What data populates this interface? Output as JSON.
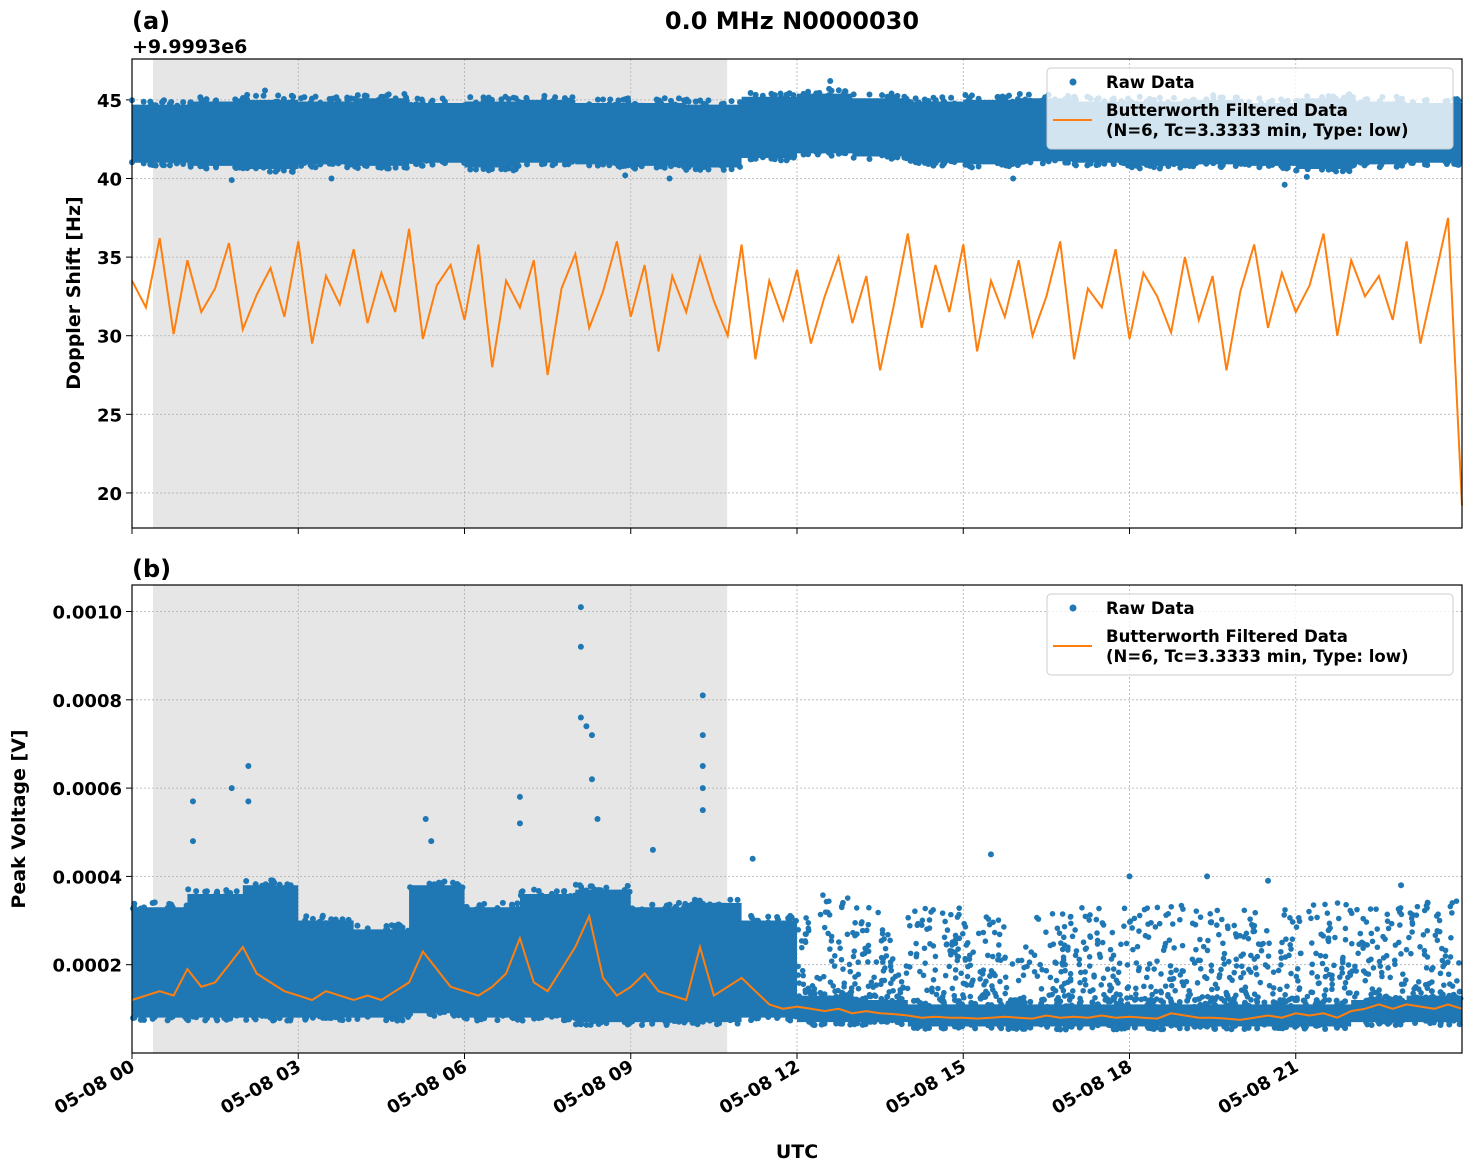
{
  "title": "0.0 MHz N0000030",
  "colors": {
    "raw": "#1f77b4",
    "filtered": "#ff7f0e",
    "shade": "#e6e6e6"
  },
  "x_tick_labels": [
    "05-08 00",
    "05-08 03",
    "05-08 06",
    "05-08 09",
    "05-08 12",
    "05-08 15",
    "05-08 18",
    "05-08 21"
  ],
  "xlabel": "UTC",
  "chart_data": [
    {
      "type": "scatter+line",
      "panel_label": "(a)",
      "ylabel": "Doppler Shift [Hz]",
      "offset_text": "+9.9993e6",
      "xlim_hours": [
        0,
        24
      ],
      "ylim": [
        17.77,
        47.6
      ],
      "y_ticks": [
        20,
        25,
        30,
        35,
        40,
        45
      ],
      "y_tick_labels": [
        "20",
        "25",
        "30",
        "35",
        "40",
        "45"
      ],
      "grid": true,
      "legend_position": "top-right",
      "legend": [
        "Raw Data",
        "Butterworth Filtered Data",
        "(N=6, Tc=3.3333 min, Type: low)"
      ],
      "shaded_region_hours": [
        0.38,
        10.74
      ],
      "raw_band_hourly": [
        [
          41.0,
          44.7
        ],
        [
          40.8,
          44.9
        ],
        [
          40.6,
          45.0
        ],
        [
          40.9,
          44.9
        ],
        [
          40.8,
          45.1
        ],
        [
          41.0,
          44.8
        ],
        [
          40.7,
          44.9
        ],
        [
          41.0,
          45.0
        ],
        [
          40.9,
          44.8
        ],
        [
          40.8,
          44.8
        ],
        [
          40.7,
          44.7
        ],
        [
          41.3,
          45.2
        ],
        [
          41.6,
          45.4
        ],
        [
          41.4,
          45.1
        ],
        [
          41.0,
          44.9
        ],
        [
          40.9,
          45.0
        ],
        [
          41.1,
          45.1
        ],
        [
          41.0,
          44.9
        ],
        [
          40.8,
          44.9
        ],
        [
          40.9,
          45.0
        ],
        [
          40.8,
          44.8
        ],
        [
          40.6,
          45.1
        ],
        [
          40.9,
          44.9
        ],
        [
          41.0,
          44.8
        ]
      ],
      "raw_outliers": [
        [
          1.8,
          39.9
        ],
        [
          3.6,
          40.0
        ],
        [
          8.9,
          40.2
        ],
        [
          12.6,
          46.2
        ],
        [
          15.9,
          40.0
        ],
        [
          20.8,
          39.6
        ],
        [
          21.2,
          40.1
        ],
        [
          9.7,
          40.0
        ],
        [
          2.4,
          45.6
        ]
      ],
      "filtered_start": "05-08 00:00",
      "filtered_step_minutes": 15,
      "filtered": [
        33.5,
        31.8,
        36.2,
        30.1,
        34.8,
        31.5,
        33.0,
        35.9,
        30.4,
        32.6,
        34.3,
        31.2,
        36.0,
        29.5,
        33.8,
        32.0,
        35.5,
        30.8,
        34.0,
        31.5,
        36.8,
        29.8,
        33.2,
        34.5,
        31.0,
        35.8,
        28.0,
        33.5,
        31.8,
        34.8,
        27.5,
        33.0,
        35.2,
        30.5,
        32.8,
        36.0,
        31.2,
        34.5,
        29.0,
        33.8,
        31.5,
        35.0,
        32.2,
        30.0,
        35.8,
        28.5,
        33.5,
        31.0,
        34.2,
        29.5,
        32.5,
        35.0,
        30.8,
        33.8,
        27.8,
        32.0,
        36.5,
        30.5,
        34.5,
        31.5,
        35.8,
        29.0,
        33.5,
        31.2,
        34.8,
        30.0,
        32.5,
        36.0,
        28.5,
        33.0,
        31.8,
        35.5,
        29.8,
        34.0,
        32.5,
        30.2,
        35.0,
        31.0,
        33.8,
        27.8,
        32.8,
        35.8,
        30.5,
        34.0,
        31.5,
        33.2,
        36.5,
        30.0,
        34.8,
        32.5,
        33.8,
        31.0,
        36.0,
        29.5,
        33.5,
        37.5,
        19.2
      ]
    },
    {
      "type": "scatter+line",
      "panel_label": "(b)",
      "ylabel": "Peak Voltage [V]",
      "xlim_hours": [
        0,
        24
      ],
      "ylim": [
        0,
        0.00106
      ],
      "y_ticks": [
        0.0002,
        0.0004,
        0.0006,
        0.0008,
        0.001
      ],
      "y_tick_labels": [
        "0.0002",
        "0.0004",
        "0.0006",
        "0.0008",
        "0.0010"
      ],
      "grid": true,
      "legend_position": "top-right",
      "legend": [
        "Raw Data",
        "Butterworth Filtered Data",
        "(N=6, Tc=3.3333 min, Type: low)"
      ],
      "shaded_region_hours": [
        0.38,
        10.74
      ],
      "raw_dense_band_hourly": [
        [
          8e-05,
          0.00033
        ],
        [
          8e-05,
          0.00036
        ],
        [
          8e-05,
          0.00038
        ],
        [
          8e-05,
          0.0003
        ],
        [
          8e-05,
          0.00028
        ],
        [
          9e-05,
          0.00038
        ],
        [
          8e-05,
          0.00033
        ],
        [
          8e-05,
          0.00036
        ],
        [
          7e-05,
          0.00037
        ],
        [
          7e-05,
          0.00033
        ],
        [
          7e-05,
          0.00034
        ],
        [
          8e-05,
          0.0003
        ],
        [
          7e-05,
          0.00013
        ],
        [
          7e-05,
          0.00012
        ],
        [
          6e-05,
          0.00011
        ],
        [
          6e-05,
          0.00011
        ],
        [
          6e-05,
          0.00011
        ],
        [
          6e-05,
          0.00011
        ],
        [
          6e-05,
          0.00011
        ],
        [
          6e-05,
          0.00011
        ],
        [
          6e-05,
          0.00011
        ],
        [
          6e-05,
          0.00011
        ],
        [
          7e-05,
          0.00012
        ],
        [
          7e-05,
          0.00013
        ]
      ],
      "raw_sparse_band_hourly": [
        [
          0.00012,
          0.00036
        ],
        [
          0.00012,
          0.00033
        ],
        [
          0.00012,
          0.00033
        ],
        [
          0.00012,
          0.00031
        ],
        [
          0.00012,
          0.00032
        ],
        [
          0.00012,
          0.00033
        ],
        [
          0.00012,
          0.00034
        ],
        [
          0.00012,
          0.00033
        ],
        [
          0.00012,
          0.00033
        ],
        [
          0.00012,
          0.00034
        ],
        [
          0.00012,
          0.00033
        ],
        [
          0.00012,
          0.00035
        ]
      ],
      "raw_outliers": [
        [
          1.1,
          0.00057
        ],
        [
          1.1,
          0.00048
        ],
        [
          1.8,
          0.0006
        ],
        [
          2.1,
          0.00065
        ],
        [
          2.1,
          0.00057
        ],
        [
          5.3,
          0.00053
        ],
        [
          5.4,
          0.00048
        ],
        [
          7.0,
          0.00058
        ],
        [
          7.0,
          0.00052
        ],
        [
          8.1,
          0.00101
        ],
        [
          8.1,
          0.00092
        ],
        [
          8.1,
          0.00076
        ],
        [
          8.2,
          0.00074
        ],
        [
          8.3,
          0.00072
        ],
        [
          8.3,
          0.00062
        ],
        [
          8.4,
          0.00053
        ],
        [
          9.4,
          0.00046
        ],
        [
          10.3,
          0.00081
        ],
        [
          10.3,
          0.00072
        ],
        [
          10.3,
          0.00065
        ],
        [
          10.3,
          0.0006
        ],
        [
          10.3,
          0.00055
        ],
        [
          11.2,
          0.00044
        ],
        [
          15.5,
          0.00045
        ],
        [
          18.0,
          0.0004
        ],
        [
          19.4,
          0.0004
        ],
        [
          20.5,
          0.00039
        ],
        [
          22.9,
          0.00038
        ]
      ],
      "filtered_start": "05-08 00:00",
      "filtered_step_minutes": 15,
      "filtered": [
        0.00012,
        0.00013,
        0.00014,
        0.00013,
        0.00019,
        0.00015,
        0.00016,
        0.0002,
        0.00024,
        0.00018,
        0.00016,
        0.00014,
        0.00013,
        0.00012,
        0.00014,
        0.00013,
        0.00012,
        0.00013,
        0.00012,
        0.00014,
        0.00016,
        0.00023,
        0.00019,
        0.00015,
        0.00014,
        0.00013,
        0.00015,
        0.00018,
        0.00026,
        0.00016,
        0.00014,
        0.00019,
        0.00024,
        0.00031,
        0.00017,
        0.00013,
        0.00015,
        0.00018,
        0.00014,
        0.00013,
        0.00012,
        0.00024,
        0.00013,
        0.00015,
        0.00017,
        0.00014,
        0.00011,
        0.0001,
        0.000105,
        0.0001,
        9.5e-05,
        0.0001,
        9e-05,
        9.5e-05,
        9e-05,
        8.8e-05,
        8.5e-05,
        8e-05,
        8.2e-05,
        8e-05,
        8e-05,
        7.8e-05,
        8e-05,
        8.2e-05,
        8e-05,
        7.8e-05,
        8.5e-05,
        8e-05,
        8.2e-05,
        8e-05,
        8.5e-05,
        8e-05,
        8.2e-05,
        8e-05,
        7.8e-05,
        9e-05,
        8.5e-05,
        8e-05,
        8e-05,
        7.8e-05,
        7.5e-05,
        8e-05,
        8.5e-05,
        8e-05,
        9e-05,
        8.5e-05,
        9e-05,
        8e-05,
        9.5e-05,
        0.0001,
        0.00011,
        0.0001,
        0.00011,
        0.000105,
        0.0001,
        0.00011,
        0.0001
      ]
    }
  ]
}
